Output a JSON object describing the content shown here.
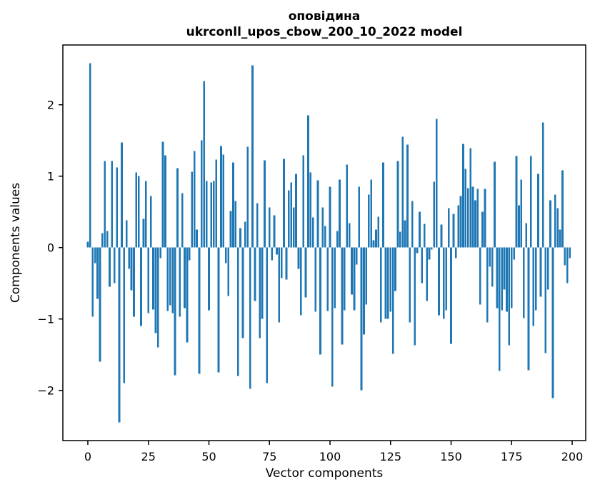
{
  "chart_data": {
    "type": "bar",
    "title_line1": "оповідина",
    "title_line2": "ukrconll_upos_cbow_200_10_2022 model",
    "xlabel": "Vector components",
    "ylabel": "Components values",
    "x_ticks": [
      0,
      25,
      50,
      75,
      100,
      125,
      150,
      175,
      200
    ],
    "y_ticks": [
      -2,
      -1,
      0,
      1,
      2
    ],
    "xlim": [
      -10.32,
      205.6
    ],
    "ylim": [
      -2.703,
      2.837
    ],
    "grid": false,
    "legend": "none",
    "bar_color": "#1f77b4",
    "n_components": 200,
    "values": [
      0.08,
      2.58,
      -0.97,
      -0.22,
      -0.72,
      -1.6,
      0.2,
      1.21,
      0.23,
      -0.55,
      1.21,
      -0.5,
      1.12,
      -2.45,
      1.47,
      -1.9,
      0.38,
      -0.3,
      -0.6,
      -0.97,
      1.05,
      1.0,
      -1.1,
      0.4,
      0.93,
      -0.92,
      0.72,
      -0.87,
      -1.2,
      -1.4,
      -0.15,
      1.48,
      1.29,
      -0.89,
      -0.81,
      -0.92,
      -1.79,
      1.11,
      -0.97,
      0.76,
      -0.85,
      -1.33,
      -0.18,
      1.06,
      1.35,
      0.25,
      -1.77,
      1.5,
      2.33,
      0.93,
      -0.88,
      0.91,
      0.93,
      1.23,
      -1.75,
      1.42,
      1.3,
      -0.22,
      -0.68,
      0.51,
      1.19,
      0.65,
      -1.8,
      0.27,
      -1.27,
      0.36,
      1.41,
      -1.98,
      2.55,
      -0.75,
      0.62,
      -1.27,
      -1.0,
      1.22,
      -1.9,
      0.56,
      -0.18,
      0.45,
      -0.1,
      -1.05,
      -0.43,
      1.24,
      -0.45,
      0.8,
      0.91,
      0.56,
      1.03,
      -0.3,
      -0.95,
      1.29,
      -0.7,
      1.85,
      1.05,
      0.42,
      -0.9,
      0.94,
      -1.5,
      0.56,
      0.3,
      -0.89,
      0.85,
      -1.95,
      -0.85,
      0.23,
      0.95,
      -1.36,
      -0.88,
      1.16,
      0.34,
      -0.66,
      -0.88,
      -0.24,
      0.85,
      -2.0,
      -1.22,
      -0.8,
      0.74,
      0.95,
      0.1,
      0.25,
      0.43,
      -1.05,
      1.19,
      -1.0,
      -1.0,
      -0.9,
      -1.49,
      -0.61,
      1.21,
      0.22,
      1.55,
      0.38,
      1.44,
      -1.05,
      0.65,
      -1.37,
      -0.08,
      0.5,
      -0.5,
      0.33,
      -0.75,
      -0.17,
      -0.03,
      0.92,
      1.8,
      -0.95,
      0.32,
      -1.0,
      -0.88,
      0.55,
      -1.35,
      0.47,
      -0.15,
      0.59,
      0.72,
      1.45,
      1.1,
      0.83,
      1.39,
      0.85,
      0.66,
      0.82,
      -0.8,
      0.5,
      0.82,
      -1.05,
      -0.27,
      -0.55,
      1.2,
      -0.85,
      -1.73,
      -0.88,
      -0.59,
      -0.9,
      -1.37,
      -0.85,
      -0.17,
      1.28,
      0.59,
      0.95,
      -0.99,
      0.34,
      -1.72,
      1.28,
      -1.1,
      -0.88,
      1.03,
      -0.69,
      1.75,
      -1.48,
      -0.59,
      0.66,
      -2.11,
      0.74,
      0.55,
      0.25,
      1.08,
      -0.25,
      -0.5,
      -0.15
    ]
  }
}
